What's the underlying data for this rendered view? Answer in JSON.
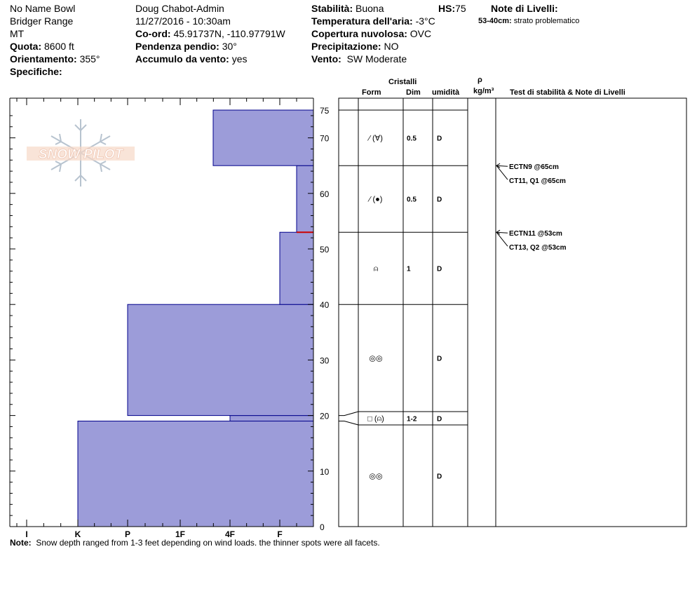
{
  "header": {
    "location": "No Name Bowl",
    "range": "Bridger Range",
    "state": "MT",
    "quota_label": "Quota:",
    "quota_value": "8600 ft",
    "orient_label": "Orientamento:",
    "orient_value": "355°",
    "spec_label": "Specifiche:",
    "observer": "Doug Chabot-Admin",
    "datetime": "11/27/2016 - 10:30am",
    "coord_label": "Co-ord:",
    "coord_value": "45.91737N, -110.97791W",
    "slope_label": "Pendenza pendio:",
    "slope_value": "30°",
    "wind_load_label": "Accumulo da vento:",
    "wind_load_value": "yes",
    "stab_label": "Stabilità:",
    "stab_value": "Buona",
    "hs_label": "HS:",
    "hs_value": "75",
    "temp_label": "Temperatura dell'aria:",
    "temp_value": "-3°C",
    "cloud_label": "Copertura nuvolosa:",
    "cloud_value": "OVC",
    "precip_label": "Precipitazione:",
    "precip_value": "NO",
    "wind_label": "Vento:",
    "wind_value": "SW Moderate",
    "notes_title": "Note di Livelli:",
    "notes_range": "53-40cm:",
    "notes_text": "strato problematico"
  },
  "table_headers": {
    "crystals": "Cristalli",
    "form": "Form",
    "dim": "Dim",
    "moisture": "umidità",
    "rho": "ρ",
    "density_unit": "kg/m³",
    "stability": "Test di stabilità & Note di Livelli"
  },
  "logo_text": "SNOW PILOT",
  "footer": {
    "label": "Note:",
    "text": "Snow depth ranged from 1-3 feet depending on wind loads. the thinner spots were all facets."
  },
  "colors": {
    "layer_fill": "#9c9cd9",
    "layer_stroke": "#00008b",
    "weak_layer": "#cc0000"
  },
  "chart_data": {
    "type": "bar",
    "orientation": "horizontal",
    "description_axis": "snow depth (cm)",
    "ylim": [
      0,
      75
    ],
    "y_ticks": [
      0,
      10,
      20,
      30,
      40,
      50,
      60,
      70,
      75
    ],
    "hardness_scale": [
      "I",
      "K",
      "P",
      "1F",
      "4F",
      "F"
    ],
    "weak_layer_depth": 53,
    "layers": [
      {
        "bottom": 0,
        "top": 19,
        "hardness": "K",
        "form": "◎◎",
        "size": "",
        "moisture": "D"
      },
      {
        "bottom": 19,
        "top": 20,
        "hardness": "4F",
        "form": "□ (⍝)",
        "size": "1-2",
        "moisture": "D"
      },
      {
        "bottom": 20,
        "top": 40,
        "hardness": "P",
        "form": "◎◎",
        "size": "",
        "moisture": "D"
      },
      {
        "bottom": 40,
        "top": 53,
        "hardness": "F",
        "form": "⍝",
        "size": "1",
        "moisture": "D"
      },
      {
        "bottom": 53,
        "top": 65,
        "hardness": "F-",
        "form": "⁄ (●)",
        "size": "0.5",
        "moisture": "D"
      },
      {
        "bottom": 65,
        "top": 75,
        "hardness": "4F+",
        "form": "⁄ (∀)",
        "size": "0.5",
        "moisture": "D"
      }
    ],
    "stability_tests": [
      {
        "depth": 65,
        "lines": [
          "ECTN9 @65cm",
          "CT11, Q1 @65cm"
        ]
      },
      {
        "depth": 53,
        "lines": [
          "ECTN11 @53cm",
          "CT13, Q2 @53cm"
        ]
      }
    ]
  }
}
